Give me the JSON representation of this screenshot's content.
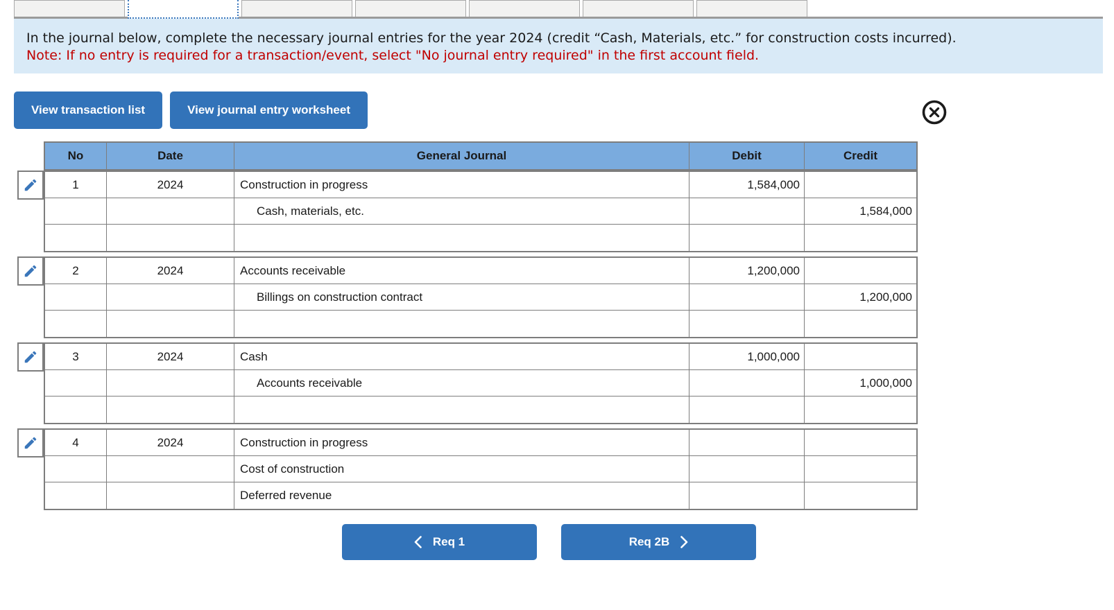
{
  "colors": {
    "accent_blue": "#3273b9",
    "table_header_blue": "#7aabde",
    "info_box_blue": "#d9eaf7",
    "note_red": "#c00000",
    "border_grey": "#7d7d7d"
  },
  "tabs": {
    "count": 7,
    "selected_index": 1
  },
  "instructions": {
    "line1": "In the journal below, complete the necessary journal entries for the year 2024 (credit “Cash, Materials, etc.” for construction costs incurred).",
    "note": "Note: If no entry is required for a transaction/event, select \"No journal entry required\" in the first account field."
  },
  "toolbar": {
    "view_transaction_list_label": "View transaction list",
    "view_journal_entry_worksheet_label": "View journal entry worksheet",
    "close_icon": "circled-x"
  },
  "journal_table": {
    "headers": {
      "no": "No",
      "date": "Date",
      "general_journal": "General Journal",
      "debit": "Debit",
      "credit": "Credit"
    },
    "entries": [
      {
        "no": "1",
        "date": "2024",
        "rows": [
          {
            "account": "Construction in progress",
            "indent": false,
            "debit": "1,584,000",
            "credit": ""
          },
          {
            "account": "Cash, materials, etc.",
            "indent": true,
            "debit": "",
            "credit": "1,584,000"
          },
          {
            "account": "",
            "indent": false,
            "debit": "",
            "credit": ""
          }
        ]
      },
      {
        "no": "2",
        "date": "2024",
        "rows": [
          {
            "account": "Accounts receivable",
            "indent": false,
            "debit": "1,200,000",
            "credit": ""
          },
          {
            "account": "Billings on construction contract",
            "indent": true,
            "debit": "",
            "credit": "1,200,000"
          },
          {
            "account": "",
            "indent": false,
            "debit": "",
            "credit": ""
          }
        ]
      },
      {
        "no": "3",
        "date": "2024",
        "rows": [
          {
            "account": "Cash",
            "indent": false,
            "debit": "1,000,000",
            "credit": ""
          },
          {
            "account": "Accounts receivable",
            "indent": true,
            "debit": "",
            "credit": "1,000,000"
          },
          {
            "account": "",
            "indent": false,
            "debit": "",
            "credit": ""
          }
        ]
      },
      {
        "no": "4",
        "date": "2024",
        "rows": [
          {
            "account": "Construction in progress",
            "indent": false,
            "debit": "",
            "credit": ""
          },
          {
            "account": "Cost of construction",
            "indent": false,
            "debit": "",
            "credit": ""
          },
          {
            "account": "Deferred revenue",
            "indent": false,
            "debit": "",
            "credit": ""
          }
        ]
      }
    ]
  },
  "nav": {
    "prev_label": "Req 1",
    "next_label": "Req 2B",
    "prev_icon": "chevron-left",
    "next_icon": "chevron-right"
  }
}
